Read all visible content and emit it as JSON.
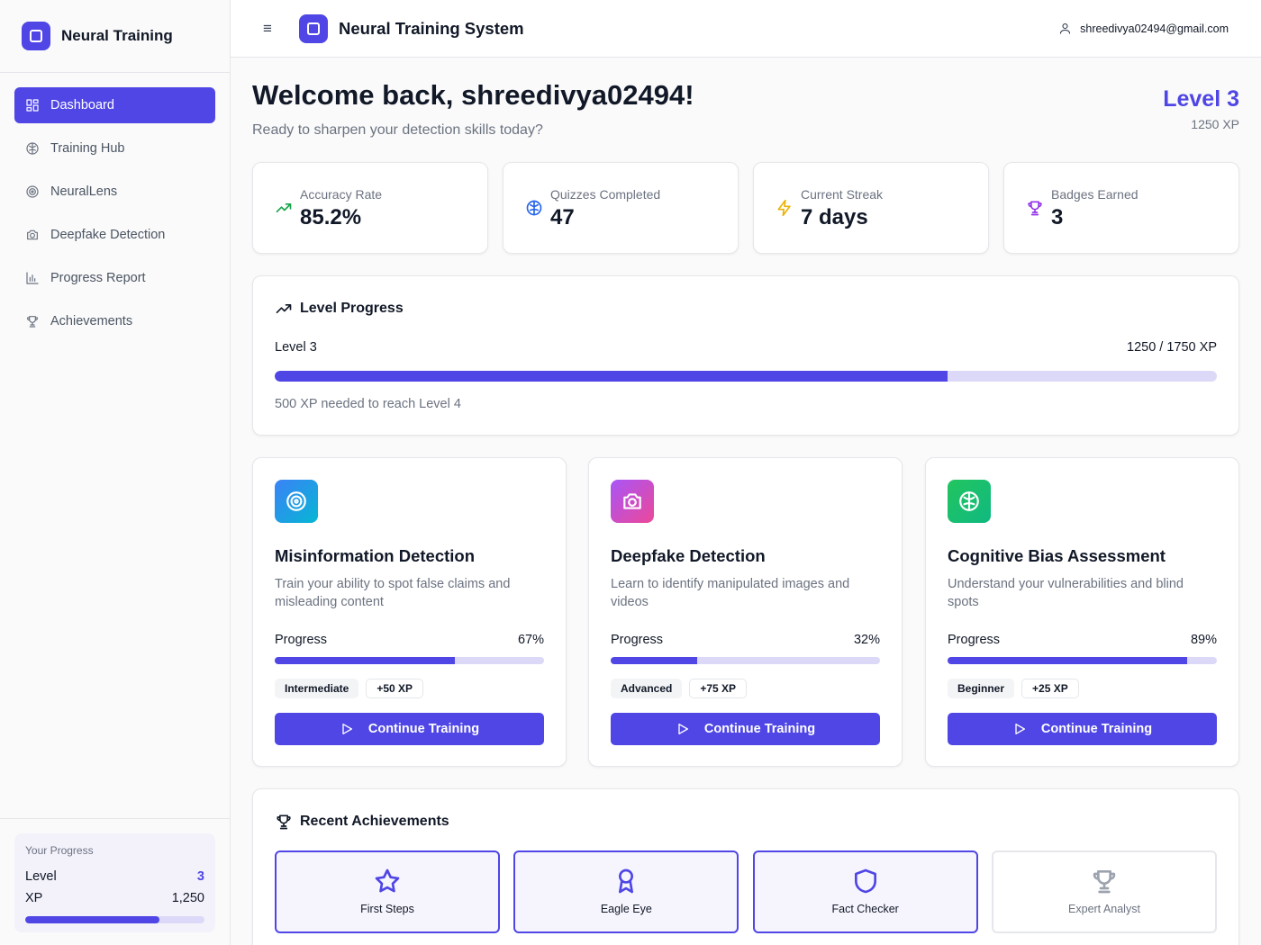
{
  "sidebar": {
    "brand": "Neural Training",
    "items": [
      {
        "label": "Dashboard",
        "icon": "dashboard-icon",
        "active": true
      },
      {
        "label": "Training Hub",
        "icon": "brain-icon"
      },
      {
        "label": "NeuralLens",
        "icon": "target-icon"
      },
      {
        "label": "Deepfake Detection",
        "icon": "camera-icon"
      },
      {
        "label": "Progress Report",
        "icon": "bar-chart-icon"
      },
      {
        "label": "Achievements",
        "icon": "trophy-icon"
      }
    ],
    "progress": {
      "title": "Your Progress",
      "level_label": "Level",
      "level_value": "3",
      "xp_label": "XP",
      "xp_value": "1,250",
      "fill_fraction": 0.75
    }
  },
  "header": {
    "menu_icon": "≡",
    "title": "Neural Training System",
    "user_email": "shreedivya02494@gmail.com"
  },
  "welcome": {
    "title": "Welcome back, shreedivya02494!",
    "subtitle": "Ready to sharpen your detection skills today?",
    "level": "Level 3",
    "xp": "1250 XP"
  },
  "stats": [
    {
      "label": "Accuracy Rate",
      "value": "85.2%",
      "icon": "trending-up-icon",
      "color": "#16a34a"
    },
    {
      "label": "Quizzes Completed",
      "value": "47",
      "icon": "brain-icon",
      "color": "#2563eb"
    },
    {
      "label": "Current Streak",
      "value": "7 days",
      "icon": "lightning-icon",
      "color": "#eab308"
    },
    {
      "label": "Badges Earned",
      "value": "3",
      "icon": "trophy-icon",
      "color": "#9333ea"
    }
  ],
  "level_progress": {
    "title": "Level Progress",
    "level_label": "Level 3",
    "xp_label": "1250 / 1750 XP",
    "note": "500 XP needed to reach Level 4",
    "current_xp": 1250,
    "target_xp": 1750
  },
  "modules": [
    {
      "title": "Misinformation Detection",
      "description": "Train your ability to spot false claims and misleading content",
      "progress_label": "Progress",
      "progress_text": "67%",
      "progress": 67,
      "difficulty": "Intermediate",
      "xp": "+50 XP",
      "button": "Continue Training",
      "icon": "target-icon",
      "gradient": [
        "#3b82f6",
        "#06b6d4"
      ]
    },
    {
      "title": "Deepfake Detection",
      "description": "Learn to identify manipulated images and videos",
      "progress_label": "Progress",
      "progress_text": "32%",
      "progress": 32,
      "difficulty": "Advanced",
      "xp": "+75 XP",
      "button": "Continue Training",
      "icon": "camera-icon",
      "gradient": [
        "#a855f7",
        "#ec4899"
      ]
    },
    {
      "title": "Cognitive Bias Assessment",
      "description": "Understand your vulnerabilities and blind spots",
      "progress_label": "Progress",
      "progress_text": "89%",
      "progress": 89,
      "difficulty": "Beginner",
      "xp": "+25 XP",
      "button": "Continue Training",
      "icon": "brain-icon",
      "gradient": [
        "#22c55e",
        "#10b981"
      ]
    }
  ],
  "achievements": {
    "title": "Recent Achievements",
    "items": [
      {
        "label": "First Steps",
        "icon": "star-icon",
        "earned": true
      },
      {
        "label": "Eagle Eye",
        "icon": "award-icon",
        "earned": true
      },
      {
        "label": "Fact Checker",
        "icon": "shield-icon",
        "earned": true
      },
      {
        "label": "Expert Analyst",
        "icon": "trophy-icon",
        "earned": false
      }
    ]
  }
}
